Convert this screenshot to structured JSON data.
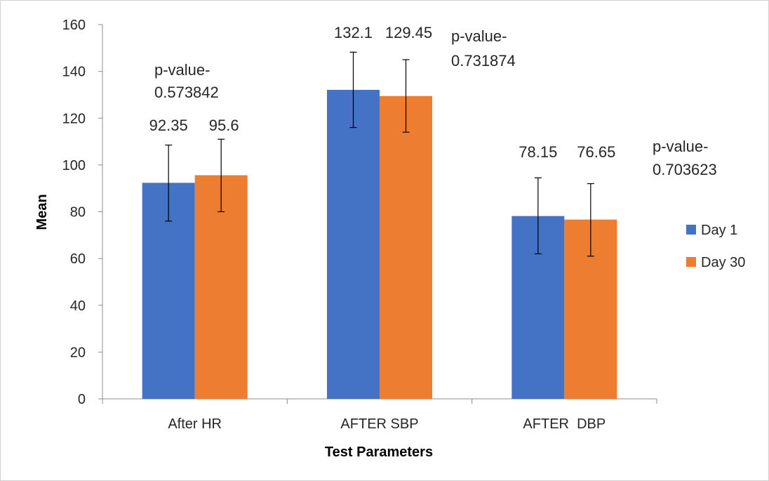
{
  "chart_data": {
    "type": "bar",
    "categories": [
      "After HR",
      "AFTER SBP",
      "AFTER  DBP"
    ],
    "series": [
      {
        "name": "Day 1",
        "color": "#4472C4",
        "values": [
          92.35,
          132.1,
          78.15
        ],
        "error_low": [
          76,
          116,
          62
        ],
        "error_high": [
          108.5,
          148.2,
          94.5
        ]
      },
      {
        "name": "Day 30",
        "color": "#ED7D31",
        "values": [
          95.6,
          129.45,
          76.65
        ],
        "error_low": [
          80,
          114,
          61
        ],
        "error_high": [
          111,
          145,
          92
        ]
      }
    ],
    "data_labels": [
      [
        "92.35",
        "132.1",
        "78.15"
      ],
      [
        "95.6",
        "129.45",
        "76.65"
      ]
    ],
    "annotations": [
      [
        "p-value-",
        "0.573842"
      ],
      [
        "p-value-",
        "0.731874"
      ],
      [
        "p-value-",
        "0.703623"
      ]
    ],
    "xlabel": "Test Parameters",
    "ylabel": "Mean",
    "ylim": [
      0,
      160
    ],
    "yticks": [
      0,
      20,
      40,
      60,
      80,
      100,
      120,
      140,
      160
    ],
    "grid": false,
    "legend_position": "right"
  }
}
